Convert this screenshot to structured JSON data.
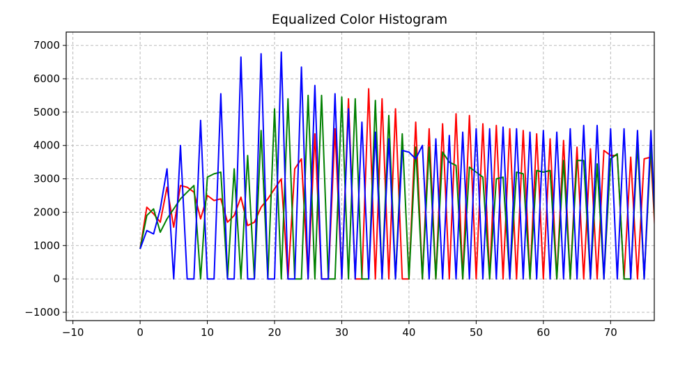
{
  "chart_data": {
    "type": "line",
    "title": "Equalized Color Histogram",
    "xlabel": "",
    "ylabel": "",
    "xlim": [
      -11,
      76.5
    ],
    "ylim": [
      -1250,
      7400
    ],
    "xticks": [
      -10,
      0,
      10,
      20,
      30,
      40,
      50,
      60,
      70
    ],
    "yticks": [
      -1000,
      0,
      1000,
      2000,
      3000,
      4000,
      5000,
      6000,
      7000
    ],
    "xtick_labels": [
      "−10",
      "0",
      "10",
      "20",
      "30",
      "40",
      "50",
      "60",
      "70"
    ],
    "ytick_labels": [
      "−1000",
      "0",
      "1000",
      "2000",
      "3000",
      "4000",
      "5000",
      "6000",
      "7000"
    ],
    "grid": true,
    "legend": "none",
    "series": [
      {
        "color": "#ff0000",
        "x": [
          0,
          1,
          2,
          3,
          4,
          5,
          6,
          7,
          8,
          9,
          10,
          11,
          12,
          13,
          14,
          15,
          16,
          17,
          18,
          19,
          20,
          21,
          22,
          23,
          24,
          25,
          26,
          27,
          28,
          29,
          30,
          31,
          32,
          33,
          34,
          35,
          36,
          37,
          38,
          39,
          40,
          41,
          42,
          43,
          44,
          45,
          46,
          47,
          48,
          49,
          50,
          51,
          52,
          53,
          54,
          55,
          56,
          57,
          58,
          59,
          60,
          61,
          62,
          63,
          64,
          65,
          66,
          67,
          68,
          69,
          70,
          71,
          72,
          73,
          74,
          75,
          76,
          77
        ],
        "values": [
          900,
          2150,
          1950,
          1700,
          2750,
          1550,
          2800,
          2750,
          2600,
          1800,
          2500,
          2350,
          2400,
          1700,
          1900,
          2450,
          1600,
          1700,
          2150,
          2400,
          2700,
          3000,
          0,
          3300,
          3600,
          0,
          4350,
          0,
          0,
          4500,
          0,
          5400,
          0,
          0,
          5700,
          0,
          5400,
          0,
          5100,
          0,
          0,
          4700,
          0,
          4500,
          0,
          4650,
          0,
          4950,
          0,
          4900,
          0,
          4650,
          0,
          4600,
          0,
          4500,
          0,
          4450,
          0,
          4350,
          0,
          4200,
          0,
          4150,
          0,
          3950,
          0,
          3900,
          0,
          3850,
          3700,
          3700,
          0,
          3650,
          0,
          3600,
          3650,
          0
        ]
      },
      {
        "color": "#008000",
        "x": [
          0,
          1,
          2,
          3,
          4,
          5,
          6,
          7,
          8,
          9,
          10,
          11,
          12,
          13,
          14,
          15,
          16,
          17,
          18,
          19,
          20,
          21,
          22,
          23,
          24,
          25,
          26,
          27,
          28,
          29,
          30,
          31,
          32,
          33,
          34,
          35,
          36,
          37,
          38,
          39,
          40,
          41,
          42,
          43,
          44,
          45,
          46,
          47,
          48,
          49,
          50,
          51,
          52,
          53,
          54,
          55,
          56,
          57,
          58,
          59,
          60,
          61,
          62,
          63,
          64,
          65,
          66,
          67,
          68,
          69,
          70,
          71,
          72,
          73,
          74,
          75,
          76,
          77
        ],
        "values": [
          900,
          1900,
          2100,
          1400,
          1800,
          2100,
          2400,
          2600,
          2800,
          0,
          3050,
          3150,
          3200,
          0,
          3300,
          0,
          3700,
          0,
          4450,
          0,
          5100,
          0,
          5400,
          0,
          0,
          5500,
          0,
          5500,
          0,
          0,
          5450,
          0,
          5400,
          0,
          0,
          5350,
          0,
          4900,
          0,
          4350,
          0,
          3950,
          0,
          3950,
          0,
          3800,
          3500,
          3400,
          0,
          3350,
          3200,
          3050,
          0,
          3000,
          3050,
          0,
          3200,
          3150,
          0,
          3250,
          3200,
          3250,
          0,
          3550,
          0,
          3550,
          3550,
          0,
          3450,
          0,
          3600,
          3750,
          0,
          0,
          4050,
          0,
          4050,
          0
        ]
      },
      {
        "color": "#0000ff",
        "x": [
          0,
          1,
          2,
          3,
          4,
          5,
          6,
          7,
          8,
          9,
          10,
          11,
          12,
          13,
          14,
          15,
          16,
          17,
          18,
          19,
          20,
          21,
          22,
          23,
          24,
          25,
          26,
          27,
          28,
          29,
          30,
          31,
          32,
          33,
          34,
          35,
          36,
          37,
          38,
          39,
          40,
          41,
          42,
          43,
          44,
          45,
          46,
          47,
          48,
          49,
          50,
          51,
          52,
          53,
          54,
          55,
          56,
          57,
          58,
          59,
          60,
          61,
          62,
          63,
          64,
          65,
          66,
          67,
          68,
          69,
          70,
          71,
          72,
          73,
          74,
          75,
          76,
          77
        ],
        "values": [
          900,
          1450,
          1350,
          2100,
          3300,
          0,
          4000,
          0,
          0,
          4750,
          0,
          0,
          5550,
          0,
          0,
          6650,
          0,
          0,
          6750,
          0,
          0,
          6800,
          0,
          0,
          6350,
          0,
          5800,
          0,
          0,
          5550,
          0,
          5100,
          0,
          4700,
          0,
          4400,
          0,
          4200,
          0,
          3850,
          3800,
          3600,
          4000,
          0,
          4200,
          0,
          4300,
          0,
          4400,
          0,
          4500,
          0,
          4500,
          0,
          4550,
          0,
          4500,
          0,
          4400,
          0,
          4450,
          0,
          4400,
          0,
          4500,
          0,
          4600,
          0,
          4600,
          0,
          4500,
          0,
          4500,
          0,
          4450,
          0,
          4450,
          0
        ]
      }
    ]
  }
}
